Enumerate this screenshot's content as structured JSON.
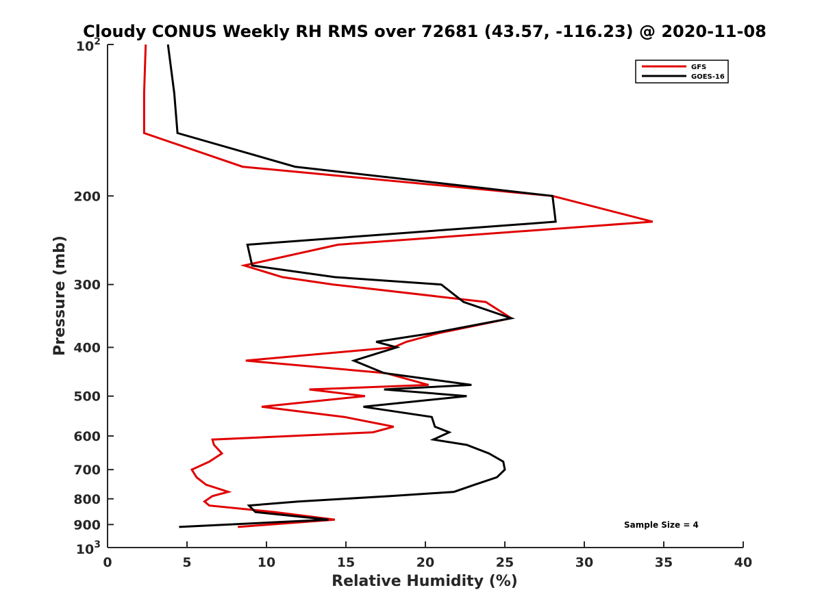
{
  "chart_data": {
    "type": "line",
    "title": "Cloudy CONUS Weekly RH RMS over 72681 (43.57, -116.23) @ 2020-11-08",
    "xlabel": "Relative Humidity (%)",
    "ylabel": "Pressure (mb)",
    "xlim": [
      0,
      40
    ],
    "ylim": [
      100,
      1000
    ],
    "y_scale": "log",
    "y_reversed": true,
    "x_ticks": [
      {
        "value": 0,
        "label": "0"
      },
      {
        "value": 5,
        "label": "5"
      },
      {
        "value": 10,
        "label": "10"
      },
      {
        "value": 15,
        "label": "15"
      },
      {
        "value": 20,
        "label": "20"
      },
      {
        "value": 25,
        "label": "25"
      },
      {
        "value": 30,
        "label": "30"
      },
      {
        "value": 35,
        "label": "35"
      },
      {
        "value": 40,
        "label": "40"
      }
    ],
    "y_ticks": [
      {
        "value": 100,
        "base": "10",
        "exp": "2"
      },
      {
        "value": 200,
        "label": "200"
      },
      {
        "value": 300,
        "label": "300"
      },
      {
        "value": 400,
        "label": "400"
      },
      {
        "value": 500,
        "label": "500"
      },
      {
        "value": 600,
        "label": "600"
      },
      {
        "value": 700,
        "label": "700"
      },
      {
        "value": 800,
        "label": "800"
      },
      {
        "value": 900,
        "label": "900"
      },
      {
        "value": 1000,
        "base": "10",
        "exp": "3"
      }
    ],
    "grid": false,
    "legend_position": "top-right",
    "annotation": "Sample Size = 4",
    "series": [
      {
        "name": "GFS",
        "color": "#e00000",
        "points": [
          [
            2.4,
            100
          ],
          [
            2.3,
            125
          ],
          [
            2.3,
            150
          ],
          [
            8.5,
            175
          ],
          [
            28,
            200
          ],
          [
            34.3,
            225
          ],
          [
            14.5,
            250
          ],
          [
            8.6,
            275
          ],
          [
            11,
            290
          ],
          [
            14.2,
            300
          ],
          [
            23.8,
            325
          ],
          [
            25.4,
            350
          ],
          [
            20.8,
            375
          ],
          [
            18.8,
            390
          ],
          [
            18,
            400
          ],
          [
            8.7,
            425
          ],
          [
            17.5,
            450
          ],
          [
            20.2,
            475
          ],
          [
            12.7,
            485
          ],
          [
            16.2,
            500
          ],
          [
            9.7,
            525
          ],
          [
            14.9,
            550
          ],
          [
            18,
            575
          ],
          [
            16.7,
            590
          ],
          [
            6.6,
            610
          ],
          [
            6.7,
            625
          ],
          [
            7.2,
            650
          ],
          [
            6.4,
            675
          ],
          [
            5.3,
            700
          ],
          [
            5.6,
            725
          ],
          [
            6.2,
            750
          ],
          [
            7.6,
            775
          ],
          [
            6.6,
            790
          ],
          [
            6.1,
            810
          ],
          [
            6.4,
            825
          ],
          [
            10.5,
            850
          ],
          [
            14.3,
            880
          ],
          [
            8.2,
            910
          ]
        ]
      },
      {
        "name": "GOES-16",
        "color": "#000000",
        "points": [
          [
            3.8,
            100
          ],
          [
            4.2,
            125
          ],
          [
            4.4,
            150
          ],
          [
            11.8,
            175
          ],
          [
            28,
            200
          ],
          [
            28.2,
            225
          ],
          [
            8.8,
            250
          ],
          [
            9.1,
            275
          ],
          [
            14.3,
            290
          ],
          [
            21,
            300
          ],
          [
            22.4,
            325
          ],
          [
            25.4,
            350
          ],
          [
            20.4,
            375
          ],
          [
            16.9,
            390
          ],
          [
            18.2,
            400
          ],
          [
            15.5,
            425
          ],
          [
            17.4,
            450
          ],
          [
            22.9,
            475
          ],
          [
            17.4,
            485
          ],
          [
            22.6,
            500
          ],
          [
            16.1,
            525
          ],
          [
            20.4,
            550
          ],
          [
            20.6,
            575
          ],
          [
            21.5,
            590
          ],
          [
            20.5,
            610
          ],
          [
            22.6,
            625
          ],
          [
            24,
            650
          ],
          [
            24.9,
            675
          ],
          [
            25,
            700
          ],
          [
            24.5,
            725
          ],
          [
            23.1,
            750
          ],
          [
            21.8,
            775
          ],
          [
            17.8,
            790
          ],
          [
            12,
            810
          ],
          [
            8.9,
            825
          ],
          [
            9.3,
            850
          ],
          [
            13.9,
            880
          ],
          [
            4.5,
            910
          ]
        ]
      }
    ]
  }
}
